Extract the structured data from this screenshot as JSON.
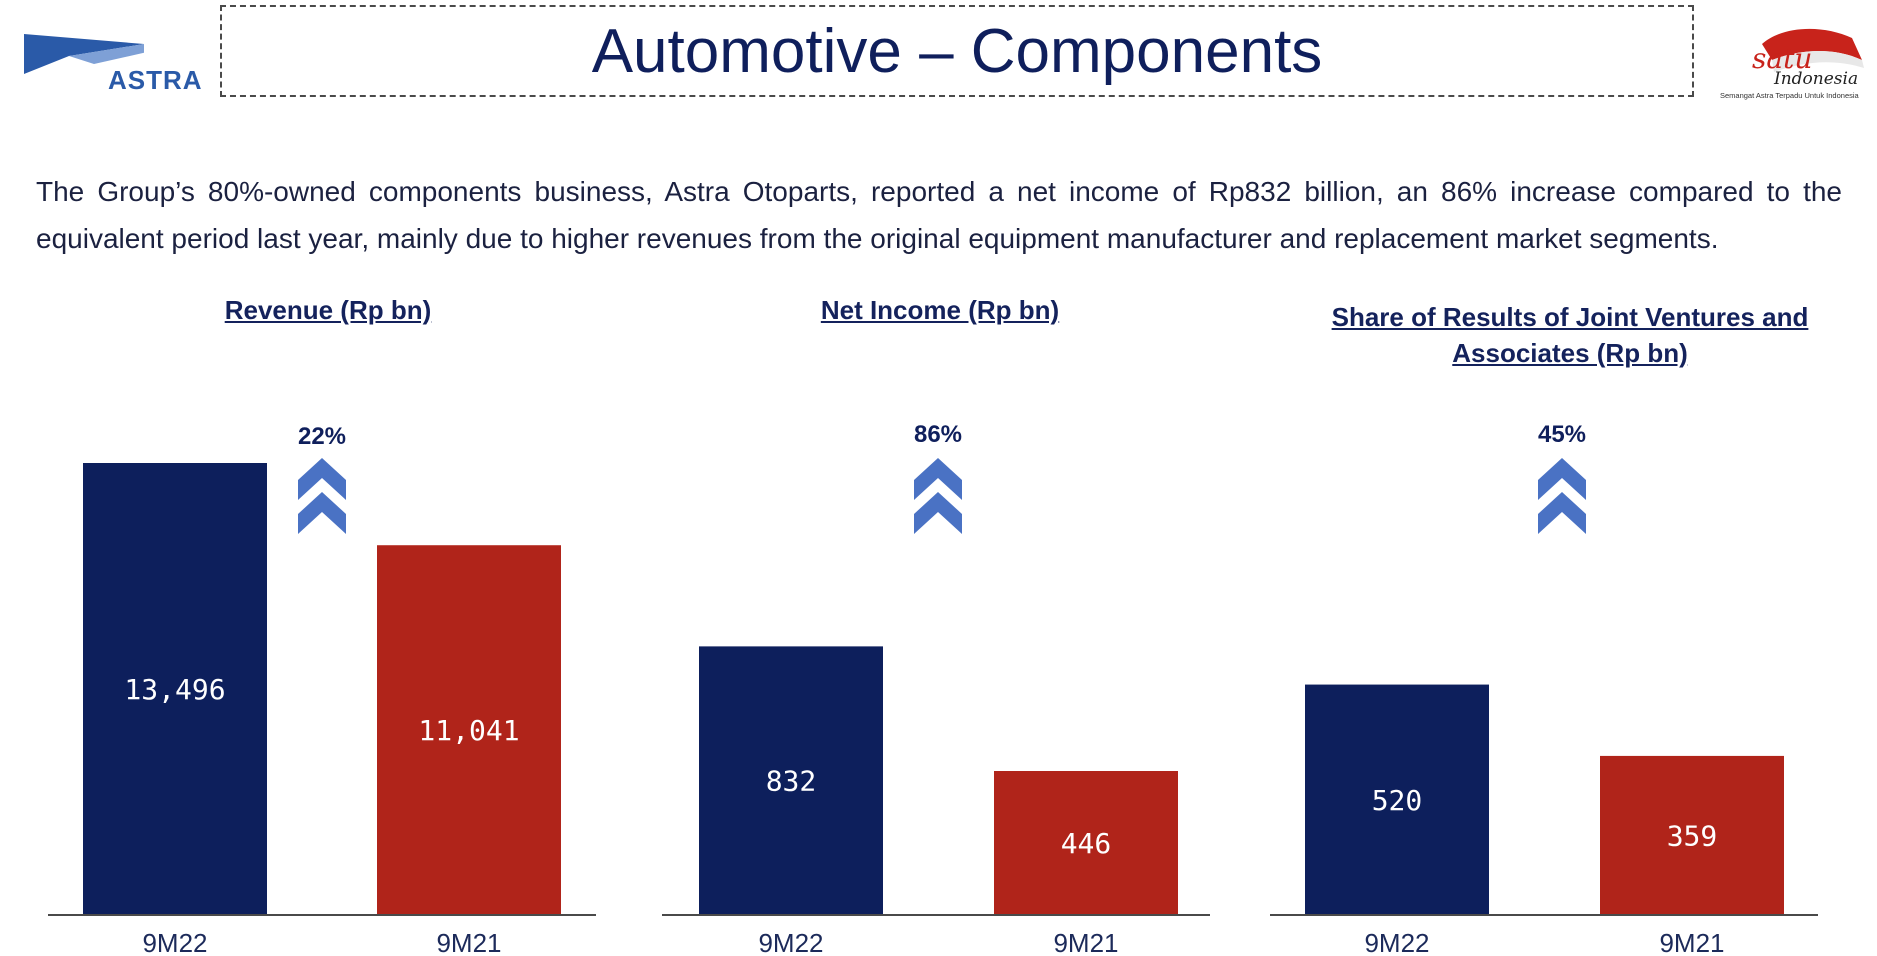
{
  "header": {
    "logo_text": "ASTRA",
    "title": "Automotive – Components",
    "brand_logo": {
      "main": "satu",
      "sub": "Indonesia",
      "tagline": "Semangat Astra Terpadu Untuk Indonesia"
    }
  },
  "intro_text": "The Group’s 80%-owned components business, Astra Otoparts, reported a net income of Rp832 billion, an 86% increase compared to the equivalent period last year, mainly due to higher revenues from the original equipment manufacturer and replacement market segments.",
  "colors": {
    "current": "#0d1f5c",
    "previous": "#b0241a",
    "arrow": "#4a72c4",
    "axis": "#4a4a4a"
  },
  "chart_data": [
    {
      "type": "bar",
      "title": "Revenue (Rp bn)",
      "categories": [
        "9M22",
        "9M21"
      ],
      "values": [
        13496,
        11041
      ],
      "value_labels": [
        "13,496",
        "11,041"
      ],
      "change_label": "22%",
      "ylim": [
        0,
        13496
      ]
    },
    {
      "type": "bar",
      "title": "Net Income (Rp bn)",
      "categories": [
        "9M22",
        "9M21"
      ],
      "values": [
        832,
        446
      ],
      "value_labels": [
        "832",
        "446"
      ],
      "change_label": "86%",
      "ylim": [
        0,
        1400
      ]
    },
    {
      "type": "bar",
      "title": "Share of Results of Joint Ventures and Associates (Rp bn)",
      "categories": [
        "9M22",
        "9M21"
      ],
      "values": [
        520,
        359
      ],
      "value_labels": [
        "520",
        "359"
      ],
      "change_label": "45%",
      "ylim": [
        0,
        1020
      ]
    }
  ]
}
